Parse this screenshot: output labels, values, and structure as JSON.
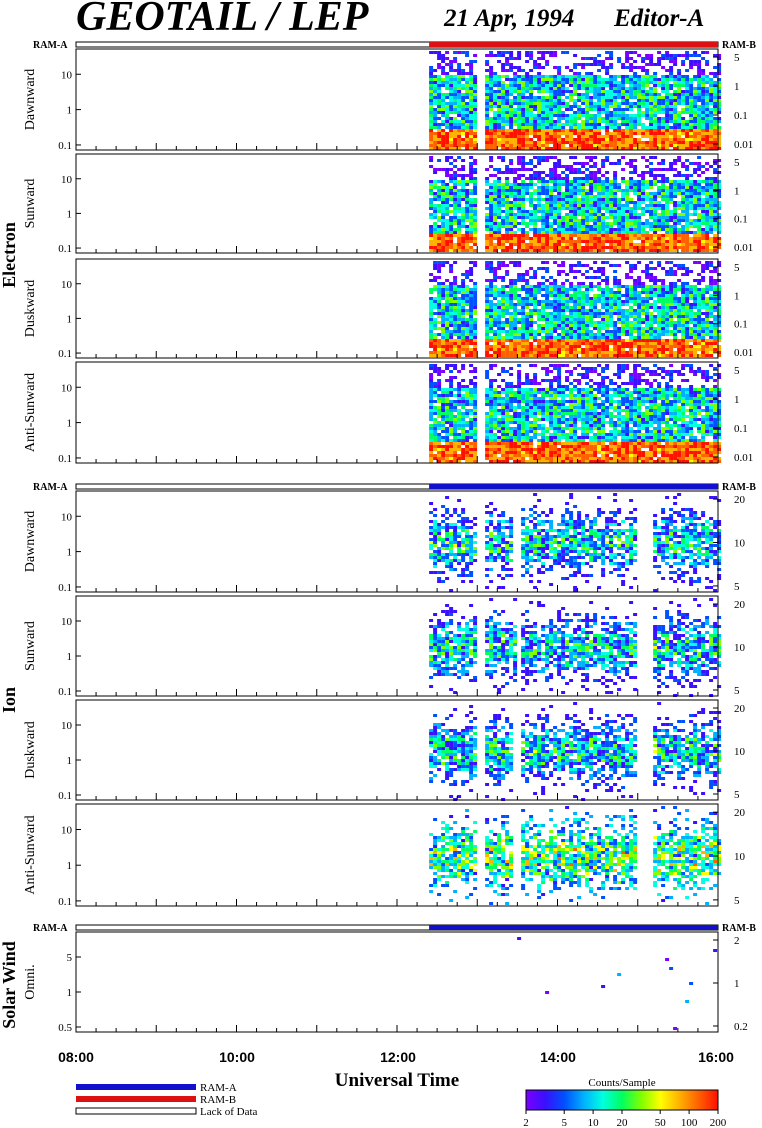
{
  "header": {
    "title": "GEOTAIL / LEP",
    "date": "21 Apr, 1994",
    "editor": "Editor-A"
  },
  "ram_labels": {
    "left": "RAM-A",
    "right": "RAM-B"
  },
  "groups": [
    {
      "label": "Electron",
      "mode_color": "#dd1111",
      "panels": [
        {
          "label": "Dawnward",
          "left_ticks": [
            "10",
            "1",
            "0.1"
          ],
          "right_ticks": [
            "5",
            "1",
            "0.1",
            "0.01"
          ]
        },
        {
          "label": "Sunward",
          "left_ticks": [
            "10",
            "1",
            "0.1"
          ],
          "right_ticks": [
            "5",
            "1",
            "0.1",
            "0.01"
          ]
        },
        {
          "label": "Duskward",
          "left_ticks": [
            "10",
            "1",
            "0.1"
          ],
          "right_ticks": [
            "5",
            "1",
            "0.1",
            "0.01"
          ]
        },
        {
          "label": "Anti-Sunward",
          "left_ticks": [
            "10",
            "1",
            "0.1"
          ],
          "right_ticks": [
            "5",
            "1",
            "0.1",
            "0.01"
          ]
        }
      ]
    },
    {
      "label": "Ion",
      "mode_color": "#1111cc",
      "panels": [
        {
          "label": "Dawnward",
          "left_ticks": [
            "10",
            "1",
            "0.1"
          ],
          "right_ticks": [
            "20",
            "10",
            "5"
          ]
        },
        {
          "label": "Sunward",
          "left_ticks": [
            "10",
            "1",
            "0.1"
          ],
          "right_ticks": [
            "20",
            "10",
            "5"
          ]
        },
        {
          "label": "Duskward",
          "left_ticks": [
            "10",
            "1",
            "0.1"
          ],
          "right_ticks": [
            "20",
            "10",
            "5"
          ]
        },
        {
          "label": "Anti-Sunward",
          "left_ticks": [
            "10",
            "1",
            "0.1"
          ],
          "right_ticks": [
            "20",
            "10",
            "5"
          ]
        }
      ]
    },
    {
      "label": "Solar Wind",
      "mode_color": "#1111cc",
      "panels": [
        {
          "label": "Omni.",
          "left_ticks": [
            "5",
            "1",
            "0.5"
          ],
          "right_ticks": [
            "2",
            "1",
            "0.2"
          ]
        }
      ]
    }
  ],
  "time_axis": {
    "label": "Universal Time",
    "ticks": [
      "08:00",
      "10:00",
      "12:00",
      "14:00",
      "16:00"
    ],
    "range_hours": [
      8,
      16
    ],
    "data_start_hour": 12.4
  },
  "legend": {
    "items": [
      {
        "label": "RAM-A",
        "color": "#1111cc"
      },
      {
        "label": "RAM-B",
        "color": "#dd1111"
      },
      {
        "label": "Lack of Data",
        "color": "#ffffff"
      }
    ]
  },
  "colorbar": {
    "title": "Counts/Sample",
    "ticks": [
      "2",
      "5",
      "10",
      "20",
      "50",
      "100",
      "200"
    ],
    "colors": [
      "#7a00ff",
      "#3a10ff",
      "#0050ff",
      "#00b0ff",
      "#00ffe0",
      "#00ff60",
      "#80ff00",
      "#ffff00",
      "#ffb000",
      "#ff6000",
      "#ff1000"
    ]
  },
  "chart_data": {
    "type": "heatmap",
    "title": "GEOTAIL / LEP",
    "xlabel": "Universal Time",
    "x_range": [
      "08:00",
      "16:00"
    ],
    "z_label": "Counts/Sample",
    "z_range": [
      2,
      200
    ],
    "data_coverage": "from about 12:25 to 16:00 UT",
    "series": [
      {
        "name": "Electron Dawnward"
      },
      {
        "name": "Electron Sunward"
      },
      {
        "name": "Electron Duskward"
      },
      {
        "name": "Electron Anti-Sunward"
      },
      {
        "name": "Ion Dawnward"
      },
      {
        "name": "Ion Sunward"
      },
      {
        "name": "Ion Duskward"
      },
      {
        "name": "Ion Anti-Sunward"
      },
      {
        "name": "Solar Wind Omni."
      }
    ]
  }
}
